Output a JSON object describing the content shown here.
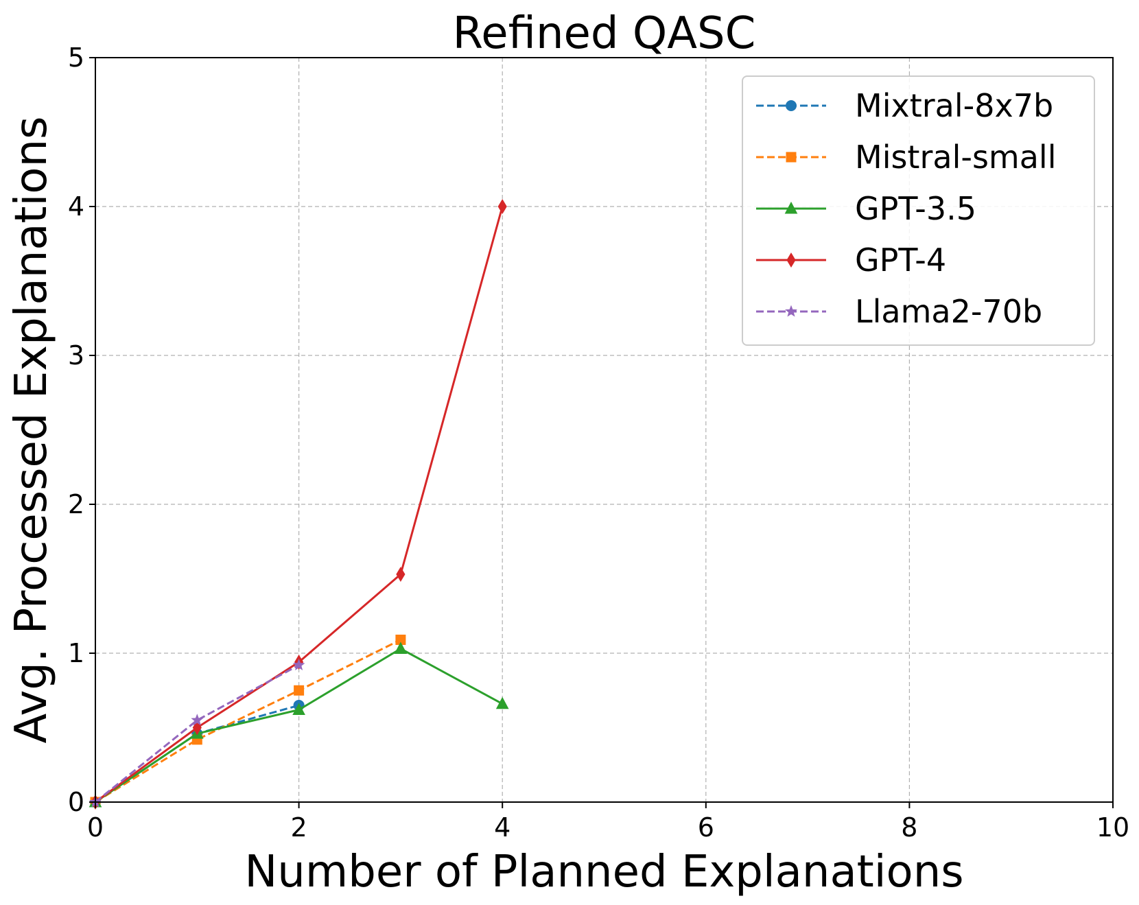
{
  "chart_data": {
    "type": "line",
    "title": "Refined QASC",
    "xlabel": "Number of Planned Explanations",
    "ylabel": "Avg. Processed Explanations",
    "xlim": [
      0,
      10
    ],
    "ylim": [
      0,
      5
    ],
    "xticks": [
      0,
      2,
      4,
      6,
      8,
      10
    ],
    "yticks": [
      0,
      1,
      2,
      3,
      4,
      5
    ],
    "grid": true,
    "legend_position": "top-right",
    "series": [
      {
        "name": "Mixtral-8x7b",
        "color": "#1f77b4",
        "linestyle": "dashed",
        "marker": "circle",
        "x": [
          0,
          1,
          2
        ],
        "y": [
          0,
          0.46,
          0.65
        ]
      },
      {
        "name": "Mistral-small",
        "color": "#ff7f0e",
        "linestyle": "dashed",
        "marker": "square",
        "x": [
          0,
          1,
          2,
          3
        ],
        "y": [
          0,
          0.42,
          0.75,
          1.09
        ]
      },
      {
        "name": "GPT-3.5",
        "color": "#2ca02c",
        "linestyle": "solid",
        "marker": "triangle",
        "x": [
          0,
          1,
          2,
          3,
          4
        ],
        "y": [
          0,
          0.46,
          0.62,
          1.03,
          0.66
        ]
      },
      {
        "name": "GPT-4",
        "color": "#d62728",
        "linestyle": "solid",
        "marker": "diamond",
        "x": [
          0,
          1,
          2,
          3,
          4
        ],
        "y": [
          0,
          0.5,
          0.94,
          1.53,
          4.0
        ]
      },
      {
        "name": "Llama2-70b",
        "color": "#9467bd",
        "linestyle": "dashed",
        "marker": "star",
        "x": [
          0,
          1,
          2
        ],
        "y": [
          0,
          0.55,
          0.92
        ]
      }
    ]
  }
}
